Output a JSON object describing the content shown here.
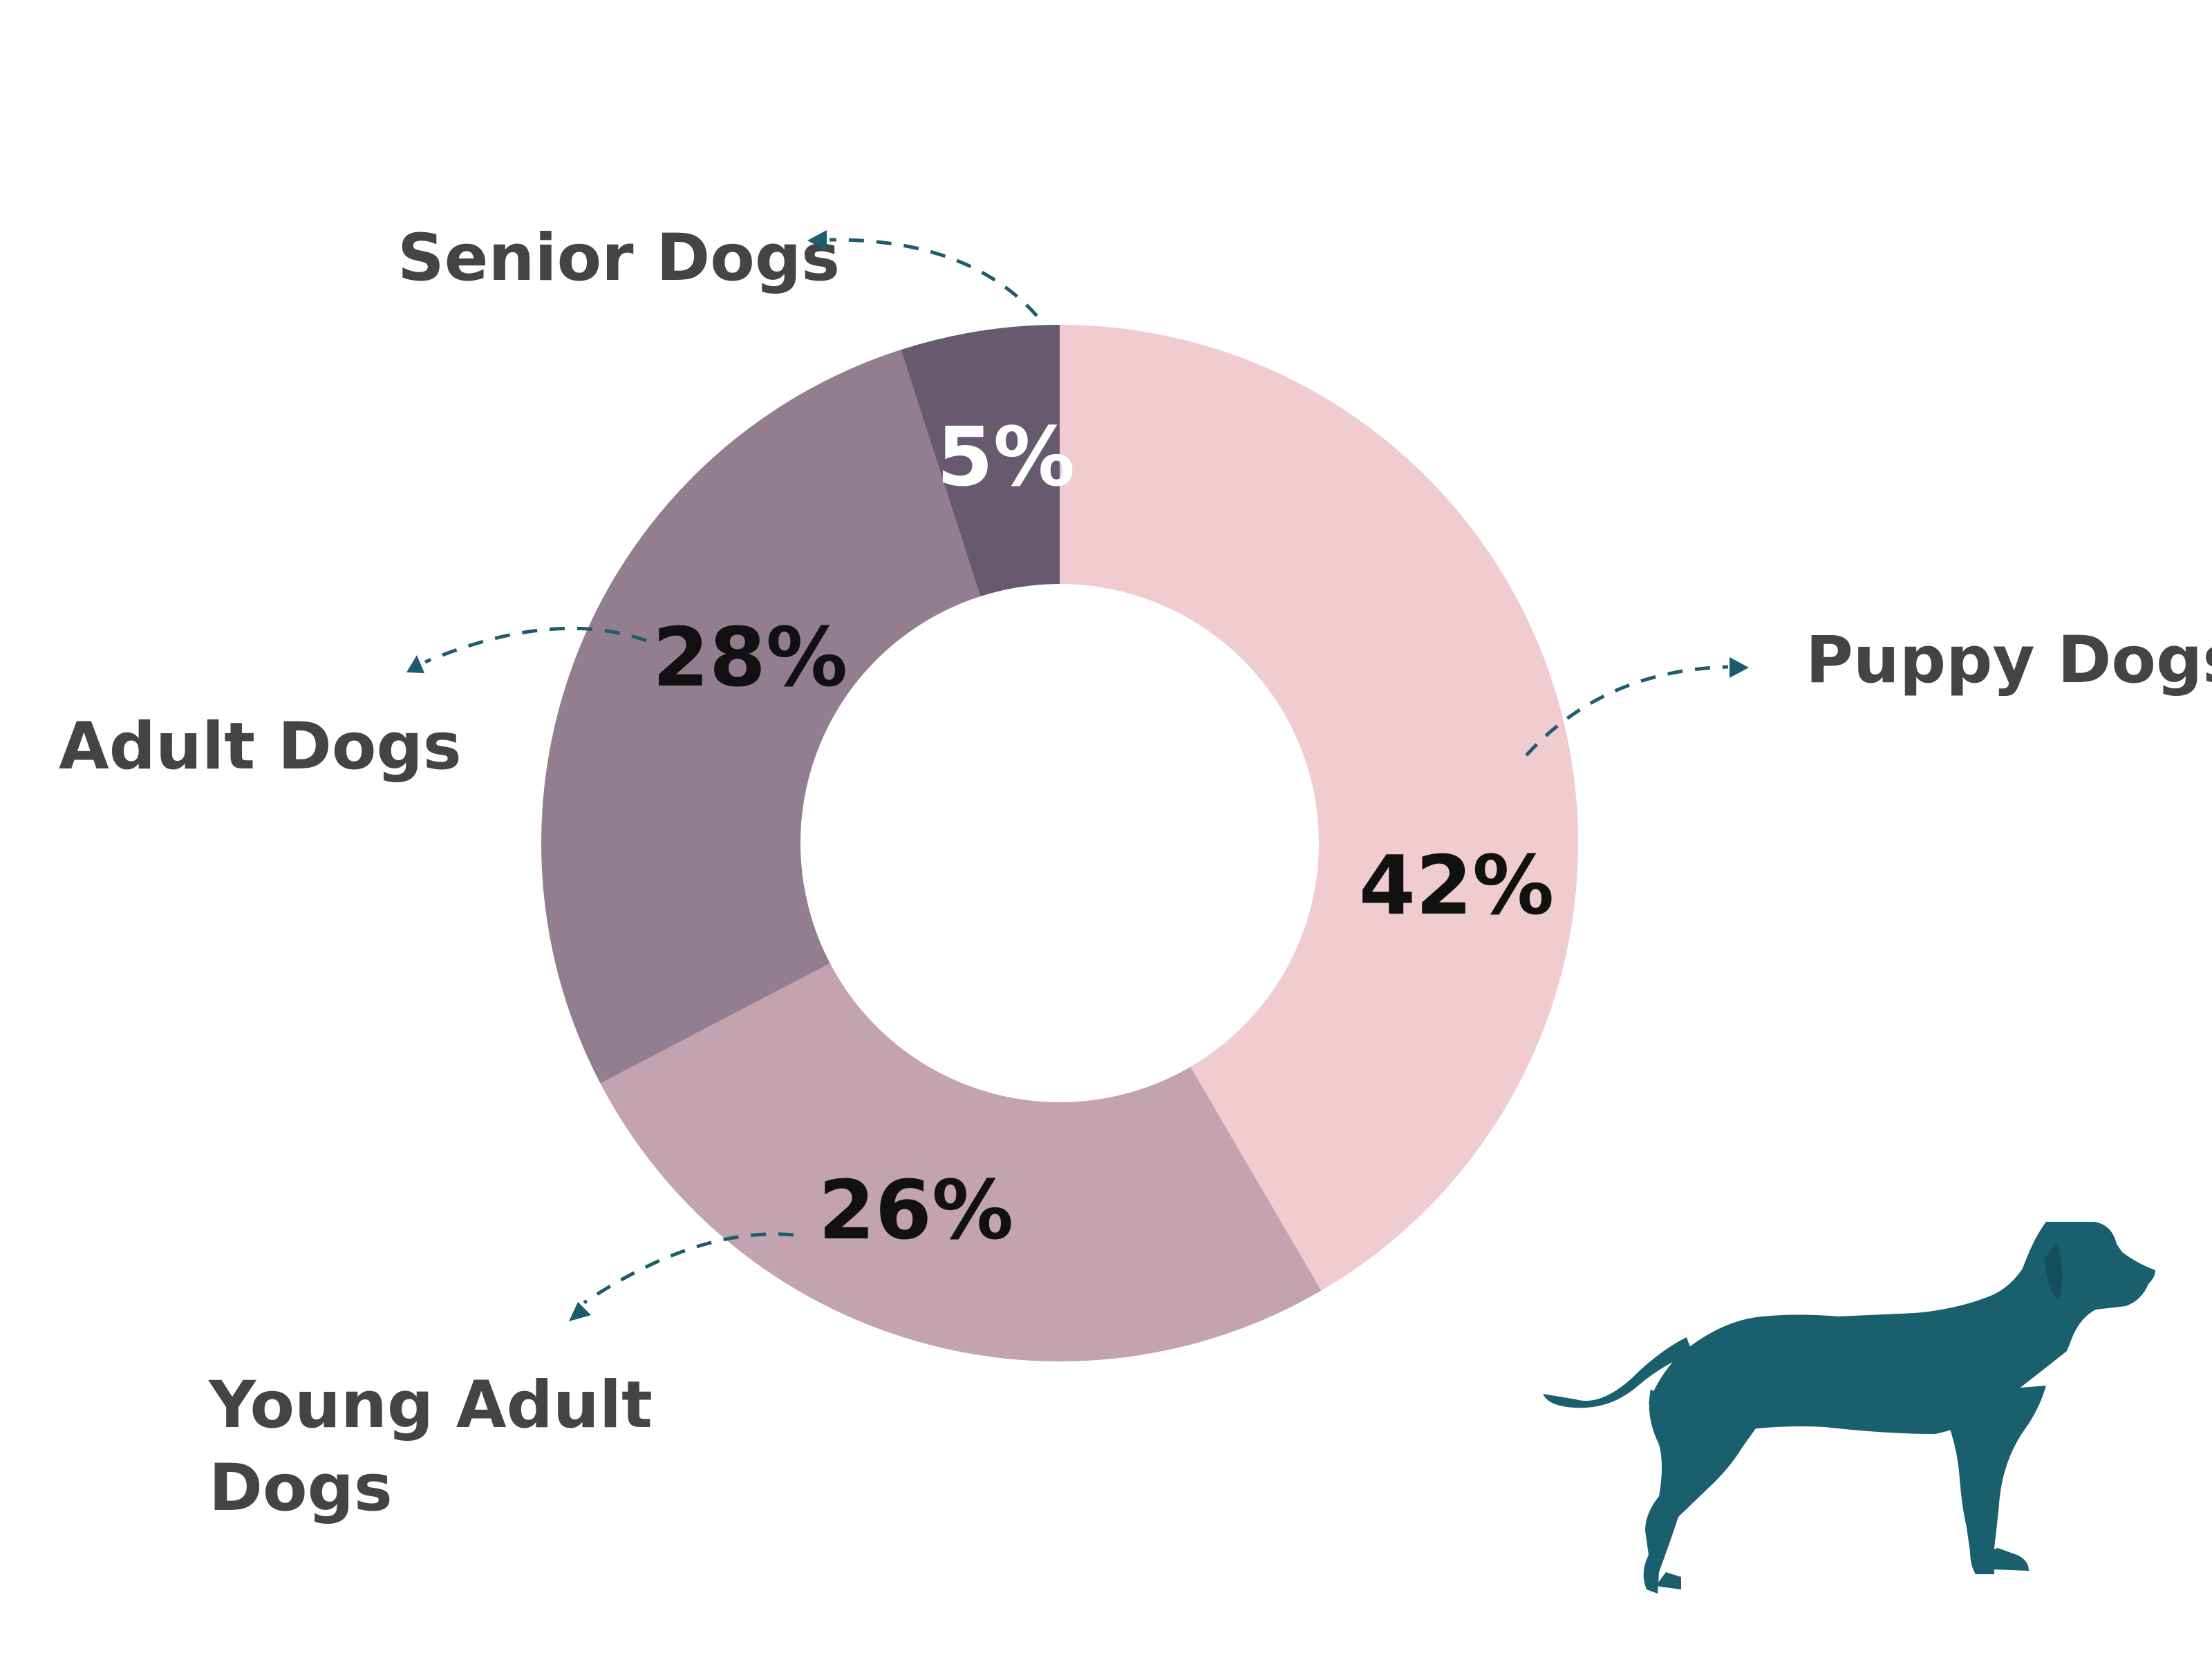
{
  "chart_data": {
    "type": "pie",
    "donut": true,
    "start": "top",
    "direction": "clockwise",
    "categories": [
      "Puppy Dogs",
      "Young Adult Dogs",
      "Adult Dogs",
      "Senior Dogs"
    ],
    "values": [
      42,
      26,
      28,
      5
    ],
    "value_labels": [
      "42%",
      "26%",
      "28%",
      "5%"
    ],
    "colors": [
      "#f0cbd0",
      "#c2a3af",
      "#937e8f",
      "#685a6e"
    ],
    "value_label_colors": [
      "#111111",
      "#111111",
      "#111111",
      "#ffffff"
    ],
    "title": "",
    "legend": "callouts"
  },
  "decor": {
    "leader_color": "#1c5c6b",
    "icon": "dog-silhouette-icon",
    "icon_color": "#195f6d"
  }
}
